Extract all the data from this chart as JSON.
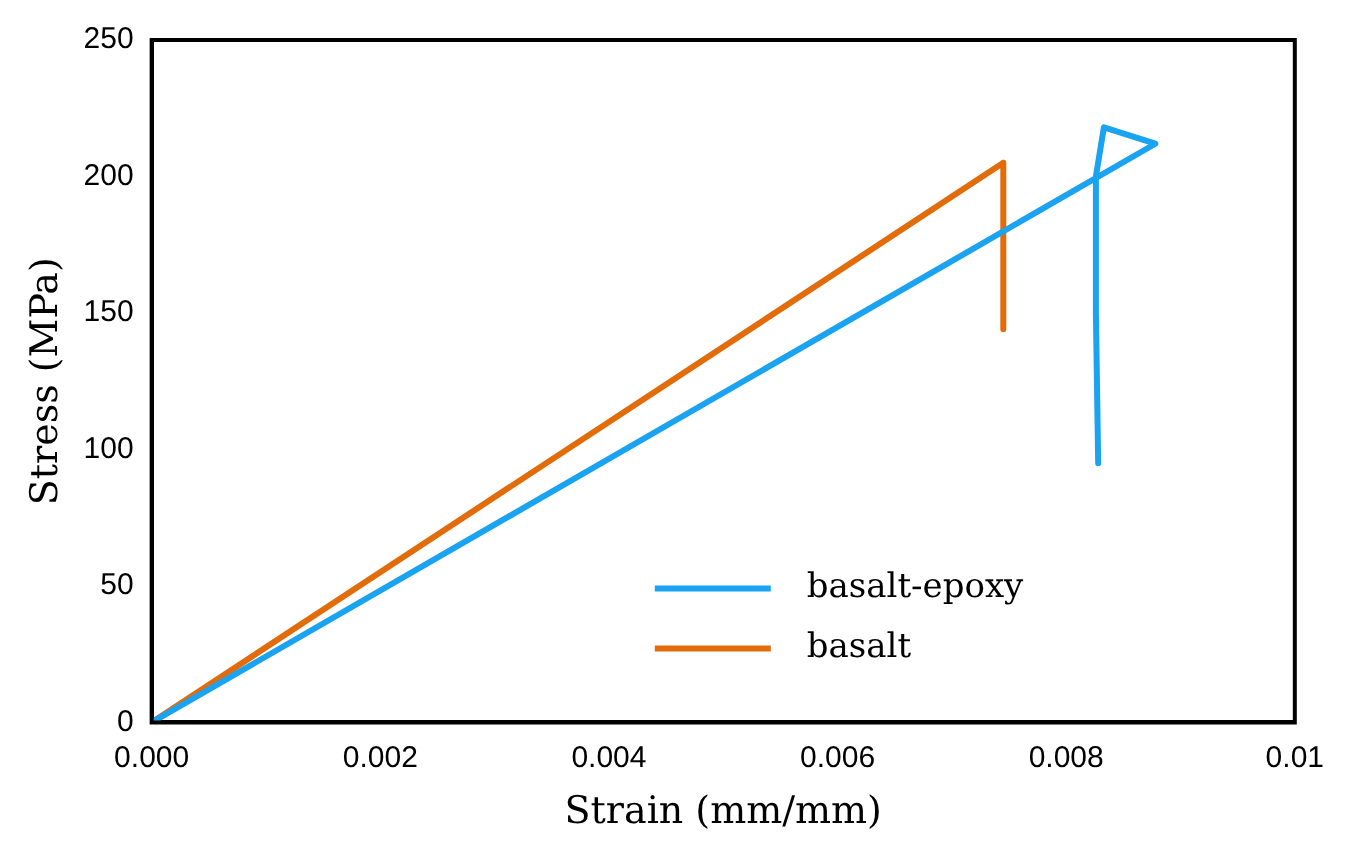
{
  "chart_data": {
    "type": "line",
    "xlabel": "Strain (mm/mm)",
    "ylabel": "Stress (MPa)",
    "xlim": [
      0,
      0.01
    ],
    "xticks": [
      {
        "value": 0,
        "label": "0.000"
      },
      {
        "value": 0.002,
        "label": "0.002"
      },
      {
        "value": 0.004,
        "label": "0.004"
      },
      {
        "value": 0.006,
        "label": "0.006"
      },
      {
        "value": 0.008,
        "label": "0.008"
      },
      {
        "value": 0.01,
        "label": "0.01"
      }
    ],
    "ylim": [
      0,
      250
    ],
    "yticks": [
      0,
      50,
      100,
      150,
      200,
      250
    ],
    "grid": false,
    "legend": "bottom right",
    "marker": "none",
    "line_style": "solid",
    "series": [
      {
        "name": "basalt-epoxy",
        "color": "#1aa3f0",
        "x": [
          0,
          0.00878,
          0.00833,
          0.00826,
          0.00826,
          0.00828
        ],
        "values": [
          0,
          212,
          218,
          200,
          150,
          95
        ]
      },
      {
        "name": "basalt",
        "color": "#e36c0a",
        "x": [
          0,
          0.00745,
          0.00745
        ],
        "values": [
          0,
          205,
          144
        ]
      }
    ]
  }
}
